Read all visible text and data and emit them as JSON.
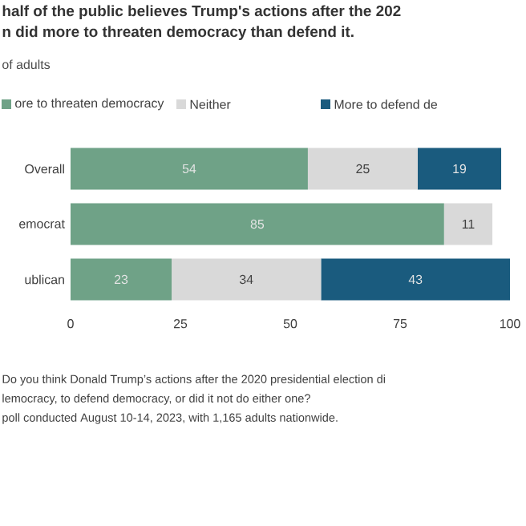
{
  "chart_data": {
    "type": "bar",
    "orientation": "horizontal",
    "stacked": true,
    "title": "half of the public believes Trump's actions after the 202\nn did more to threaten democracy than defend it.",
    "subtitle": "of adults",
    "categories": [
      "Overall",
      "emocrat",
      "ublican"
    ],
    "series": [
      {
        "name": "ore to threaten democracy",
        "color": "#6fa287",
        "values": [
          54,
          85,
          23
        ]
      },
      {
        "name": "Neither",
        "color": "#d9d9d9",
        "values": [
          25,
          11,
          34
        ]
      },
      {
        "name": "More to defend de",
        "color": "#1a5b7e",
        "values": [
          19,
          null,
          43
        ]
      }
    ],
    "xlim": [
      0,
      100
    ],
    "xticks": [
      0,
      25,
      50,
      75,
      100
    ],
    "data_labels": true,
    "legend": "top",
    "grid": false,
    "annotations": [
      "Do you think Donald Trump’s actions after the 2020 presidential election di",
      "lemocracy, to defend democracy, or did it not do either one?",
      "poll conducted August 10-14, 2023, with 1,165 adults nationwide."
    ]
  }
}
